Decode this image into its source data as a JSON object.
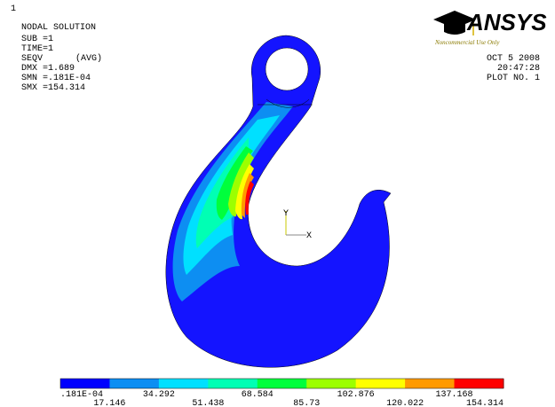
{
  "info": {
    "window_number": "1",
    "lines": [
      "NODAL SOLUTION",
      "SUB =1",
      "TIME=1",
      "SEQV",
      "DMX =1.689",
      "SMN =.181E-04",
      "SMX =154.314"
    ],
    "avg": "(AVG)"
  },
  "logo": {
    "name": "ANSYS",
    "note": "Noncommercial Use Only"
  },
  "stamp": {
    "date": "OCT  5 2008",
    "time": "20:47:28",
    "plot": "PLOT NO.   1"
  },
  "triad": {
    "y": "Y",
    "x": "X"
  },
  "legend": {
    "colors": [
      "#0000ff",
      "#0d8ef2",
      "#00e0ff",
      "#00ffb4",
      "#00ff3c",
      "#9cff00",
      "#ffff00",
      "#ff9a00",
      "#ff0000"
    ],
    "labels": [
      ".181E-04",
      "17.146",
      "34.292",
      "51.438",
      "68.584",
      "85.73",
      "102.876",
      "120.022",
      "137.168",
      "154.314"
    ]
  }
}
